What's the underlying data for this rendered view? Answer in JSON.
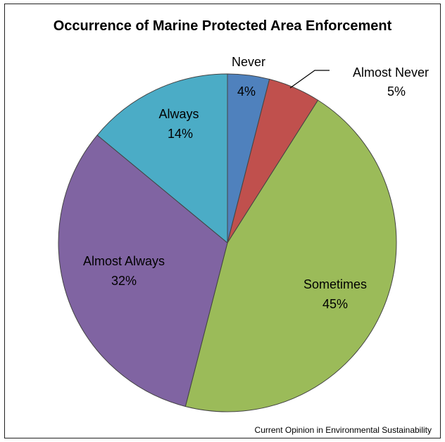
{
  "chart_data": {
    "type": "pie",
    "title": "Occurrence of Marine Protected Area Enforcement",
    "slices": [
      {
        "label": "Never",
        "percent_label": "4%",
        "value": 4,
        "color": "#4F81BD"
      },
      {
        "label": "Almost Never",
        "percent_label": "5%",
        "value": 5,
        "color": "#C0504D"
      },
      {
        "label": "Sometimes",
        "percent_label": "45%",
        "value": 45,
        "color": "#9BBB59"
      },
      {
        "label": "Almost Always",
        "percent_label": "32%",
        "value": 32,
        "color": "#8064A2"
      },
      {
        "label": "Always",
        "percent_label": "14%",
        "value": 14,
        "color": "#4BACC6"
      }
    ],
    "legend": "none",
    "start_angle": "top, clockwise"
  },
  "source": "Current Opinion in Environmental Sustainability"
}
